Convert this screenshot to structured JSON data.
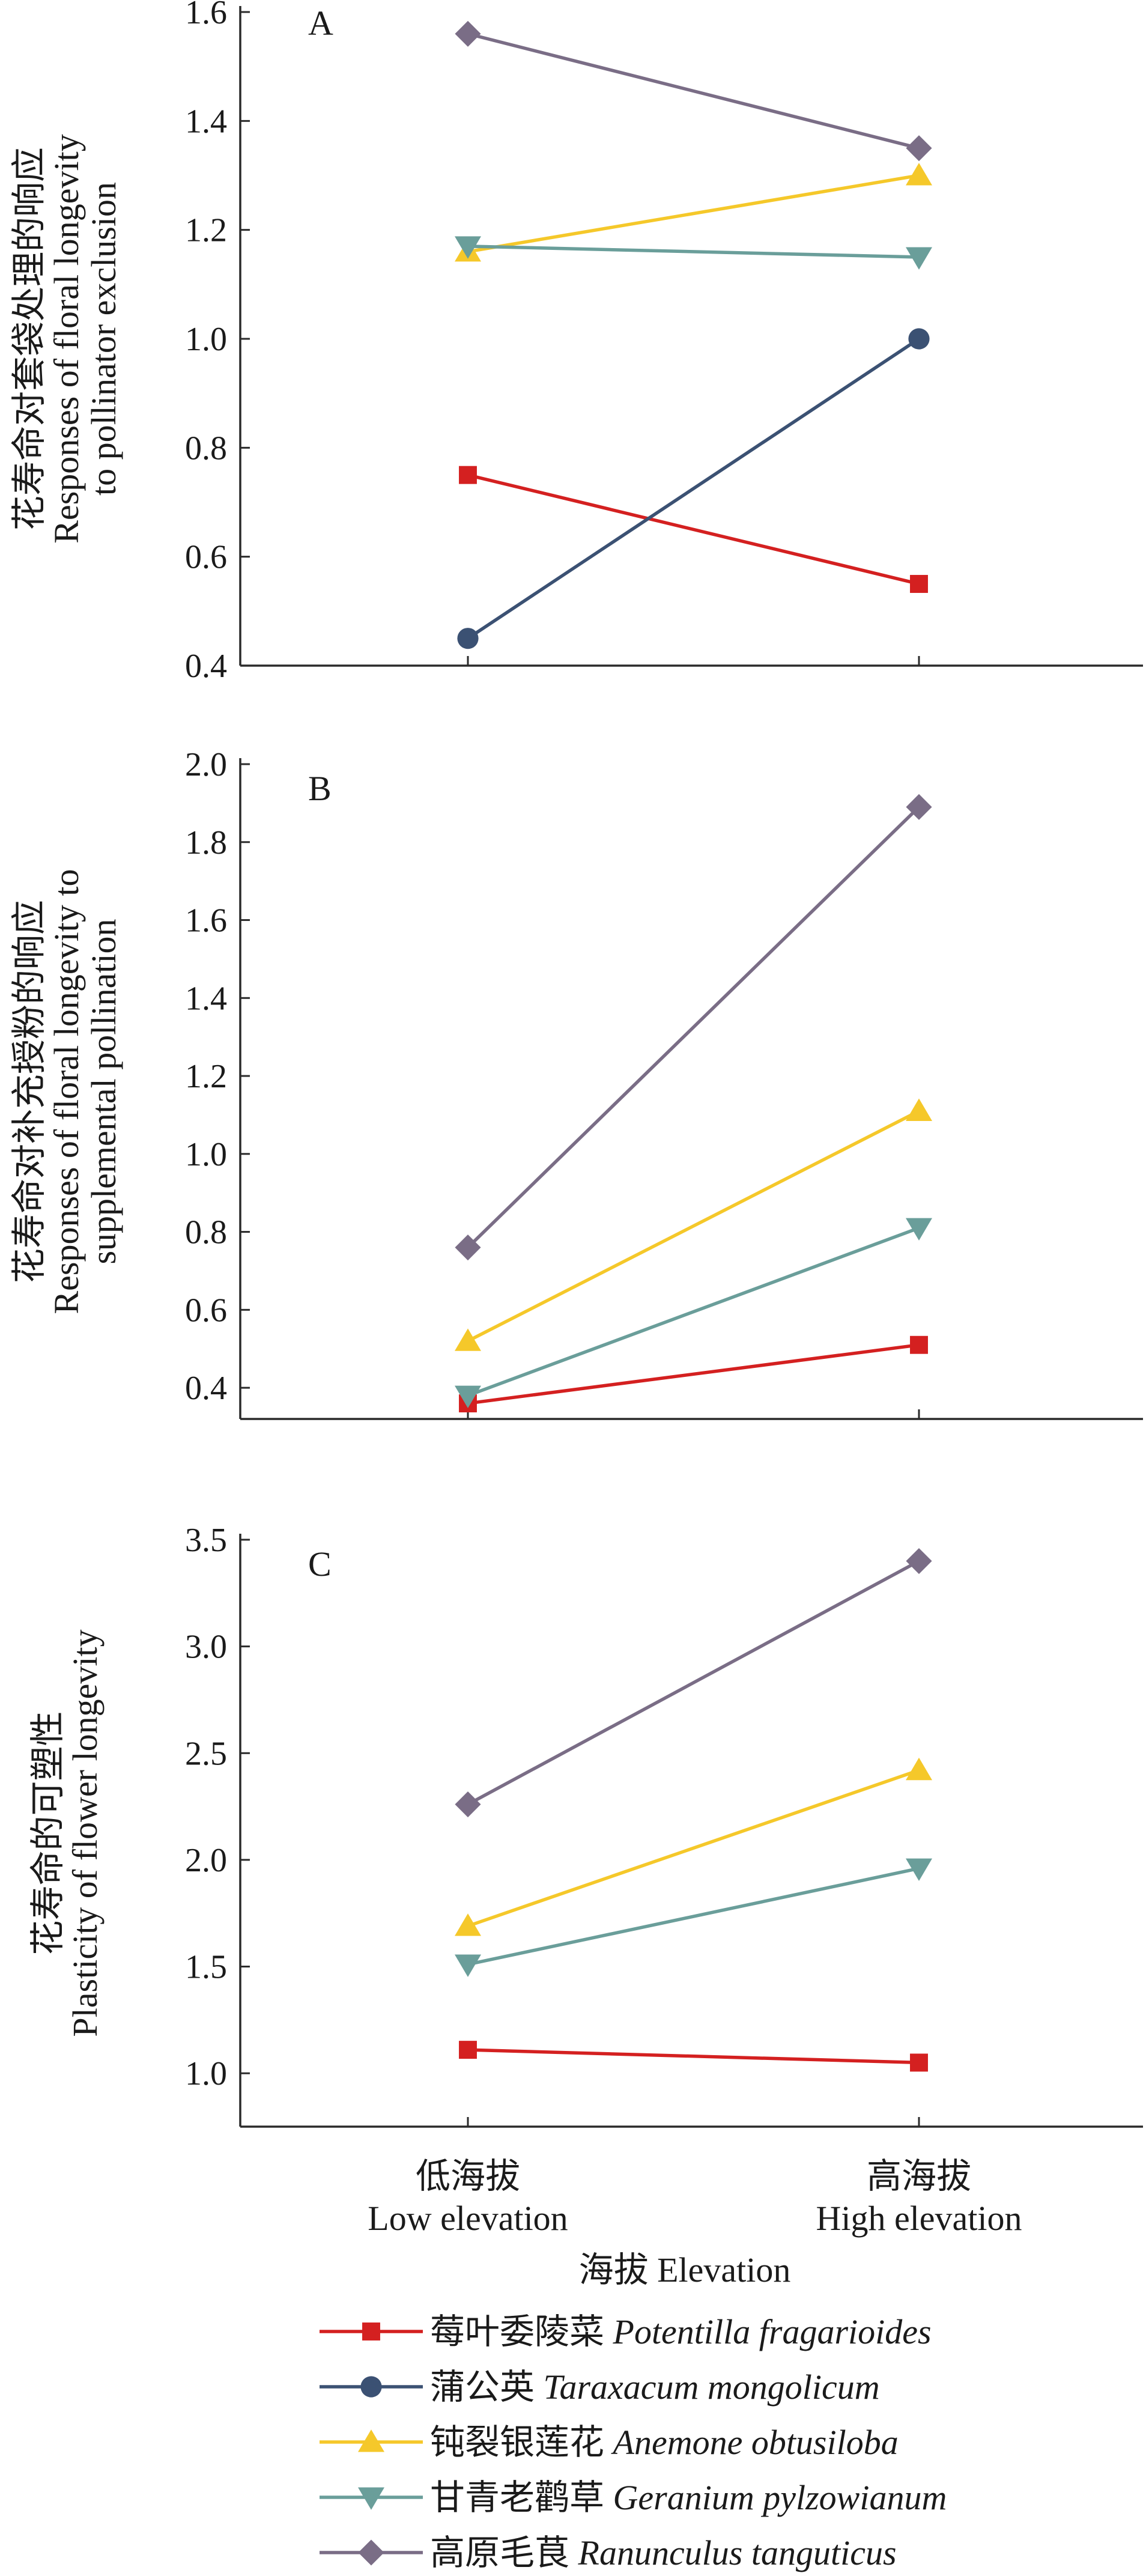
{
  "chart_data": [
    {
      "panel": "A",
      "type": "line",
      "categories": [
        "Low elevation",
        "High elevation"
      ],
      "ylabel_cn": "花寿命对套袋处理的响应",
      "ylabel_en": [
        "Responses of floral longevity",
        "to pollinator exclusion"
      ],
      "ylim": [
        0.4,
        1.6
      ],
      "yticks": [
        "0.4",
        "0.6",
        "0.8",
        "1.0",
        "1.2",
        "1.4",
        "1.6"
      ],
      "grid": false,
      "series": [
        {
          "name": "Potentilla fragarioides",
          "values": [
            0.75,
            0.55
          ]
        },
        {
          "name": "Taraxacum mongolicum",
          "values": [
            0.45,
            1.0
          ]
        },
        {
          "name": "Anemone obtusiloba",
          "values": [
            1.16,
            1.3
          ]
        },
        {
          "name": "Geranium pylzowianum",
          "values": [
            1.17,
            1.15
          ]
        },
        {
          "name": "Ranunculus tanguticus",
          "values": [
            1.56,
            1.35
          ]
        }
      ]
    },
    {
      "panel": "B",
      "type": "line",
      "categories": [
        "Low elevation",
        "High elevation"
      ],
      "ylabel_cn": "花寿命对补充授粉的响应",
      "ylabel_en": [
        "Responses of floral longevity to",
        "supplemental pollination"
      ],
      "ylim": [
        0.32,
        2.0
      ],
      "yticks": [
        "0.4",
        "0.6",
        "0.8",
        "1.0",
        "1.2",
        "1.4",
        "1.6",
        "1.8",
        "2.0"
      ],
      "grid": false,
      "series": [
        {
          "name": "Potentilla fragarioides",
          "values": [
            0.36,
            0.51
          ]
        },
        {
          "name": "Anemone obtusiloba",
          "values": [
            0.52,
            1.11
          ]
        },
        {
          "name": "Geranium pylzowianum",
          "values": [
            0.38,
            0.81
          ]
        },
        {
          "name": "Ranunculus tanguticus",
          "values": [
            0.76,
            1.89
          ]
        }
      ]
    },
    {
      "panel": "C",
      "type": "line",
      "categories": [
        "Low elevation",
        "High elevation"
      ],
      "ylabel_cn": "花寿命的可塑性",
      "ylabel_en": [
        "Plasticity of flower longevity"
      ],
      "ylim": [
        0.75,
        3.5
      ],
      "yticks": [
        "1.0",
        "1.5",
        "2.0",
        "2.5",
        "3.0",
        "3.5"
      ],
      "grid": false,
      "series": [
        {
          "name": "Potentilla fragarioides",
          "values": [
            1.11,
            1.05
          ]
        },
        {
          "name": "Anemone obtusiloba",
          "values": [
            1.69,
            2.42
          ]
        },
        {
          "name": "Geranium pylzowianum",
          "values": [
            1.51,
            1.96
          ]
        },
        {
          "name": "Ranunculus tanguticus",
          "values": [
            2.26,
            3.4
          ]
        }
      ]
    }
  ],
  "x_axis": {
    "categories": [
      {
        "cn": "低海拔",
        "en": "Low elevation"
      },
      {
        "cn": "高海拔",
        "en": "High elevation"
      }
    ],
    "title": "海拔 Elevation"
  },
  "legend": {
    "placement": "bottom",
    "entries": [
      {
        "key": "potentilla",
        "cn": "莓叶委陵菜",
        "latin": "Potentilla fragarioides",
        "color": "#d42020",
        "marker": "square"
      },
      {
        "key": "taraxacum",
        "cn": "蒲公英",
        "latin": "Taraxacum mongolicum",
        "color": "#3b5173",
        "marker": "circle"
      },
      {
        "key": "anemone",
        "cn": "钝裂银莲花",
        "latin": "Anemone obtusiloba",
        "color": "#f5c82a",
        "marker": "triangle-up"
      },
      {
        "key": "geranium",
        "cn": "甘青老鹳草",
        "latin": "Geranium pylzowianum",
        "color": "#6a9e9a",
        "marker": "triangle-down"
      },
      {
        "key": "ranunculus",
        "cn": "高原毛茛",
        "latin": "Ranunculus tanguticus",
        "color": "#7a6d86",
        "marker": "diamond"
      }
    ]
  }
}
